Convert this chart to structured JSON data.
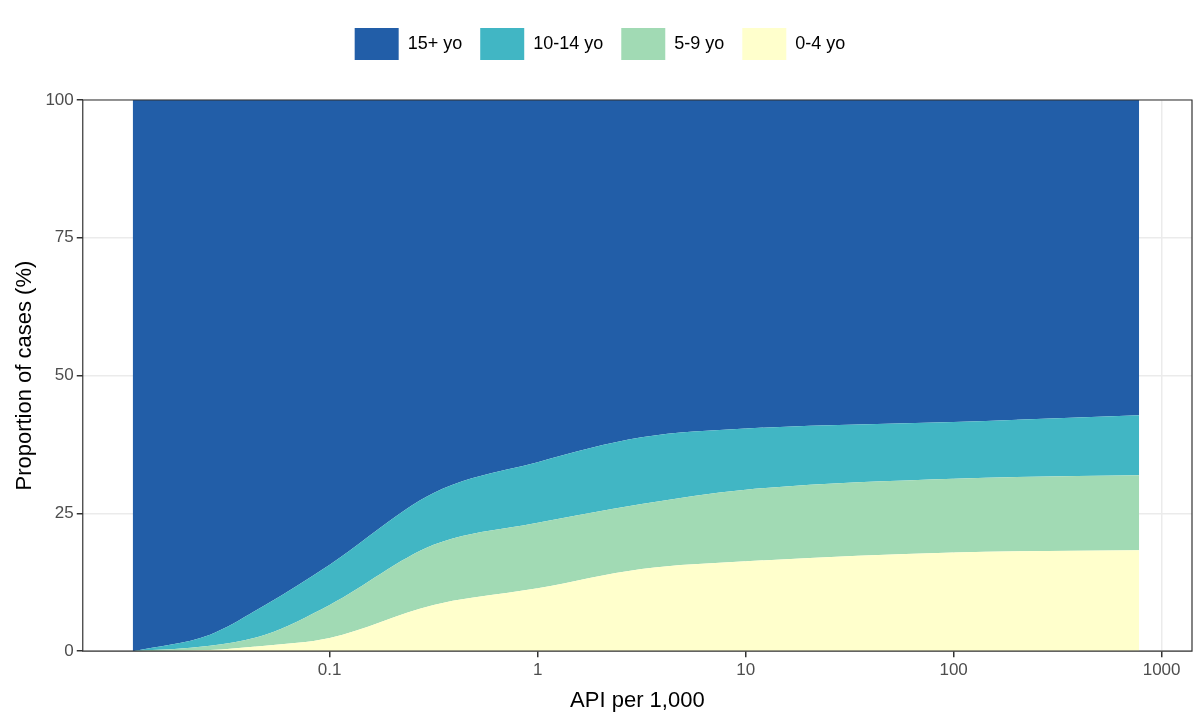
{
  "chart_data": {
    "type": "area",
    "xlabel": "API per 1,000",
    "ylabel": "Proportion of cases (%)",
    "x": [
      0.0113,
      0.0266,
      0.049,
      0.1,
      0.316,
      1,
      3.16,
      10,
      100,
      780
    ],
    "series": [
      {
        "name": "0-4 yo",
        "color": "#ffffcc",
        "values": [
          0,
          0.2,
          1,
          2.4,
          8.4,
          11.4,
          14.9,
          16.3,
          17.9,
          18.3
        ]
      },
      {
        "name": "5-9 yo",
        "color": "#a1dab4",
        "values": [
          0,
          0.8,
          2,
          6,
          10.9,
          11.9,
          11.8,
          13,
          13.4,
          13.6
        ]
      },
      {
        "name": "10-14 yo",
        "color": "#41b6c4",
        "values": [
          0,
          2,
          5.4,
          7.3,
          9.4,
          11,
          12.1,
          11.1,
          10.3,
          10.9
        ]
      },
      {
        "name": "15+ yo",
        "color": "#225ea8",
        "values": [
          100,
          97,
          91.6,
          84.3,
          71.3,
          65.7,
          61.2,
          59.6,
          58.4,
          57.2
        ]
      }
    ],
    "stacked": true,
    "log": "x",
    "xlim": [
      0.0065,
      1400
    ],
    "xticks": [
      0.1,
      1,
      10,
      100,
      1000
    ],
    "ylim": [
      0,
      100
    ],
    "yticks": [
      0,
      25,
      50,
      75,
      100
    ],
    "grid": true,
    "legend": "top"
  }
}
